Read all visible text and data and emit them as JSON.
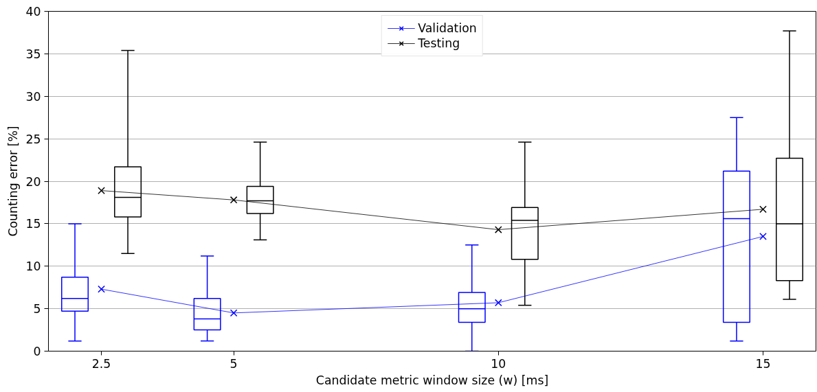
{
  "chart_data": {
    "type": "box",
    "xlabel": "Candidate metric window size (w) [ms]",
    "ylabel": "Counting error [%]",
    "xlim": [
      1.5,
      16
    ],
    "xticks": [
      2.5,
      5,
      10,
      15
    ],
    "ylim": [
      0,
      40
    ],
    "yticks": [
      0,
      5,
      10,
      15,
      20,
      25,
      30,
      35,
      40
    ],
    "grid": "y",
    "legend": "top",
    "series": [
      {
        "color": "#0000ff",
        "x": [
          2,
          4.5,
          9.5,
          14.5
        ],
        "boxes": [
          {
            "low": 1.2,
            "q1": 4.7,
            "median": 6.2,
            "q3": 8.7,
            "high": 15
          },
          {
            "low": 1.2,
            "q1": 2.5,
            "median": 3.8,
            "q3": 6.2,
            "high": 11.2
          },
          {
            "low": 0,
            "q1": 3.4,
            "median": 5.0,
            "q3": 6.9,
            "high": 12.5
          },
          {
            "low": 1.2,
            "q1": 3.4,
            "median": 15.6,
            "q3": 21.2,
            "high": 27.5
          }
        ]
      },
      {
        "color": "#000000",
        "x": [
          3,
          5.5,
          10.5,
          15.5
        ],
        "boxes": [
          {
            "low": 11.5,
            "q1": 15.8,
            "median": 18.1,
            "q3": 21.7,
            "high": 35.4
          },
          {
            "low": 13.1,
            "q1": 16.2,
            "median": 17.7,
            "q3": 19.4,
            "high": 24.6
          },
          {
            "low": 5.4,
            "q1": 10.8,
            "median": 15.4,
            "q3": 16.9,
            "high": 24.6
          },
          {
            "low": 6.1,
            "q1": 8.3,
            "median": 15.0,
            "q3": 22.7,
            "high": 37.7
          }
        ]
      },
      {
        "type": "line",
        "name": "Validation",
        "color": "#0000ff",
        "marker": "cross",
        "x": [
          2.5,
          5,
          10,
          15
        ],
        "values": [
          7.3,
          4.5,
          5.7,
          13.5
        ]
      },
      {
        "type": "line",
        "name": "Testing",
        "color": "#000000",
        "marker": "cross",
        "x": [
          2.5,
          5,
          10,
          15
        ],
        "values": [
          18.9,
          17.8,
          14.3,
          16.7
        ]
      }
    ]
  }
}
